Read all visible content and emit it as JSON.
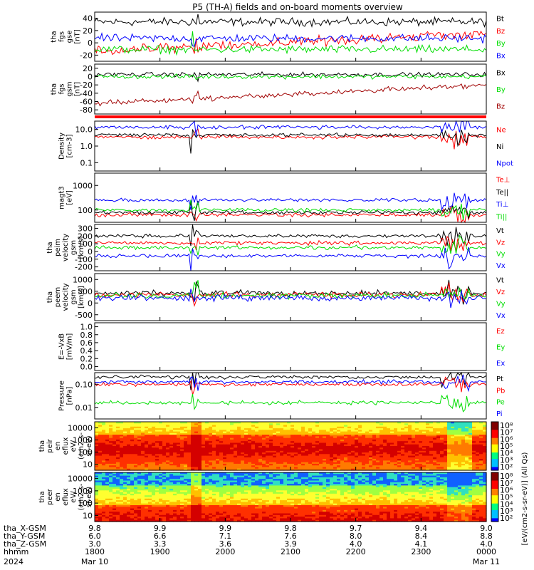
{
  "title": "P5 (TH-A) fields and on-board moments overview",
  "colors": {
    "black": "#000000",
    "red": "#ff0000",
    "darkred": "#a00000",
    "green": "#00dd00",
    "blue": "#0000ff"
  },
  "chart_data": [
    {
      "type": "line",
      "panel": "fgs_gse",
      "ylabel": [
        "tha",
        "fgs",
        "gse",
        "[nT]"
      ],
      "yticks": [
        "40",
        "20",
        "0",
        "-20"
      ],
      "ylim": [
        -30,
        45
      ],
      "series": [
        {
          "name": "Bt",
          "color": "#000000",
          "level": 30
        },
        {
          "name": "Bz",
          "color": "#ff0000",
          "level": 12
        },
        {
          "name": "By",
          "color": "#00dd00",
          "level": -12
        },
        {
          "name": "Bx",
          "color": "#0000ff",
          "level": 5
        }
      ]
    },
    {
      "type": "line",
      "panel": "fgs_gsm",
      "ylabel": [
        "tha",
        "fgs",
        "gsm",
        "[nT]"
      ],
      "yticks": [
        "20",
        "0",
        "-20",
        "-40",
        "-60",
        "-80"
      ],
      "ylim": [
        -90,
        30
      ],
      "series": [
        {
          "name": "Bx",
          "color": "#000000",
          "level": 5
        },
        {
          "name": "By",
          "color": "#00dd00",
          "level": 0
        },
        {
          "name": "Bz",
          "color": "#a00000",
          "level": -40
        }
      ]
    },
    {
      "type": "line",
      "panel": "density",
      "ylabel": [
        "Density",
        "[cm-3]"
      ],
      "yticks": [
        "10.0",
        "1.0",
        "0.1"
      ],
      "log": true,
      "series": [
        {
          "name": "Ne",
          "color": "#ff0000"
        },
        {
          "name": "Ni",
          "color": "#000000"
        },
        {
          "name": "Npot",
          "color": "#0000ff"
        }
      ]
    },
    {
      "type": "line",
      "panel": "temperature",
      "ylabel": [
        "magt3",
        "[eV]"
      ],
      "yticks": [
        "1000",
        "100"
      ],
      "log": true,
      "series": [
        {
          "name": "Te⊥",
          "color": "#ff0000"
        },
        {
          "name": "Te||",
          "color": "#000000"
        },
        {
          "name": "Ti⊥",
          "color": "#0000ff"
        },
        {
          "name": "Ti||",
          "color": "#00dd00"
        }
      ]
    },
    {
      "type": "line",
      "panel": "peim_velocity",
      "ylabel": [
        "tha",
        "peim",
        "velocity",
        "gsm",
        "[km/s]"
      ],
      "yticks": [
        "300",
        "200",
        "100",
        "0",
        "-100",
        "-200"
      ],
      "ylim": [
        -250,
        320
      ],
      "series": [
        {
          "name": "Vt",
          "color": "#000000"
        },
        {
          "name": "Vz",
          "color": "#ff0000"
        },
        {
          "name": "Vy",
          "color": "#00dd00"
        },
        {
          "name": "Vx",
          "color": "#0000ff"
        }
      ]
    },
    {
      "type": "line",
      "panel": "peem_velocity",
      "ylabel": [
        "tha",
        "peem",
        "velocity",
        "gsm",
        "[km/s]"
      ],
      "yticks": [
        "1000",
        "500",
        "0",
        "-500"
      ],
      "ylim": [
        -800,
        1300
      ],
      "series": [
        {
          "name": "Vt",
          "color": "#000000"
        },
        {
          "name": "Vz",
          "color": "#ff0000"
        },
        {
          "name": "Vy",
          "color": "#00dd00"
        },
        {
          "name": "Vx",
          "color": "#0000ff"
        }
      ]
    },
    {
      "type": "line",
      "panel": "efield",
      "ylabel": [
        "E=-VxB",
        "[mV/m]"
      ],
      "yticks": [
        "1.0",
        "0.8",
        "0.6",
        "0.4",
        "0.2",
        "0.0"
      ],
      "ylim": [
        0,
        1
      ],
      "series": [
        {
          "name": "Ez",
          "color": "#ff0000"
        },
        {
          "name": "Ey",
          "color": "#00dd00"
        },
        {
          "name": "Ex",
          "color": "#0000ff"
        }
      ]
    },
    {
      "type": "line",
      "panel": "pressure",
      "ylabel": [
        "Pressure",
        "[nPa]"
      ],
      "yticks": [
        "0.10",
        "0.01"
      ],
      "log": true,
      "series": [
        {
          "name": "Pt",
          "color": "#000000"
        },
        {
          "name": "Pb",
          "color": "#ff0000"
        },
        {
          "name": "Pe",
          "color": "#00dd00"
        },
        {
          "name": "Pi",
          "color": "#0000ff"
        }
      ]
    },
    {
      "type": "heatmap",
      "panel": "peir_en_eflux",
      "ylabel": [
        "tha",
        "peir",
        "en",
        "eflux",
        "eV/",
        "(cm2-s-",
        "sr-eV)"
      ],
      "yticks": [
        "10000",
        "1000",
        "100",
        "10"
      ]
    },
    {
      "type": "heatmap",
      "panel": "peer_en_eflux",
      "ylabel": [
        "tha",
        "peer",
        "en",
        "eflux",
        "eV/",
        "(cm2-s-",
        "sr-eV)"
      ],
      "yticks": [
        "10000",
        "1000",
        "100",
        "10"
      ]
    }
  ],
  "colorbar": {
    "ticks": [
      "10⁸",
      "10⁷",
      "10⁶",
      "10⁵",
      "10⁴",
      "10³",
      "10²"
    ],
    "label": "[eV/(cm2-s-sr-eV)] (All Qs)"
  },
  "xaxis": {
    "rows": [
      {
        "label": "tha_X-GSM",
        "values": [
          "9.8",
          "9.9",
          "9.9",
          "9.8",
          "9.7",
          "9.4",
          "9.0"
        ]
      },
      {
        "label": "tha_Y-GSM",
        "values": [
          "6.0",
          "6.6",
          "7.1",
          "7.6",
          "8.0",
          "8.4",
          "8.8"
        ]
      },
      {
        "label": "tha_Z-GSM",
        "values": [
          "3.0",
          "3.3",
          "3.6",
          "3.9",
          "4.0",
          "4.1",
          "4.0"
        ]
      },
      {
        "label": "hhmm",
        "values": [
          "1800",
          "1900",
          "2000",
          "2100",
          "2200",
          "2300",
          "0000"
        ]
      }
    ],
    "year": "2024",
    "start_date": "Mar 10",
    "end_date": "Mar 11"
  }
}
